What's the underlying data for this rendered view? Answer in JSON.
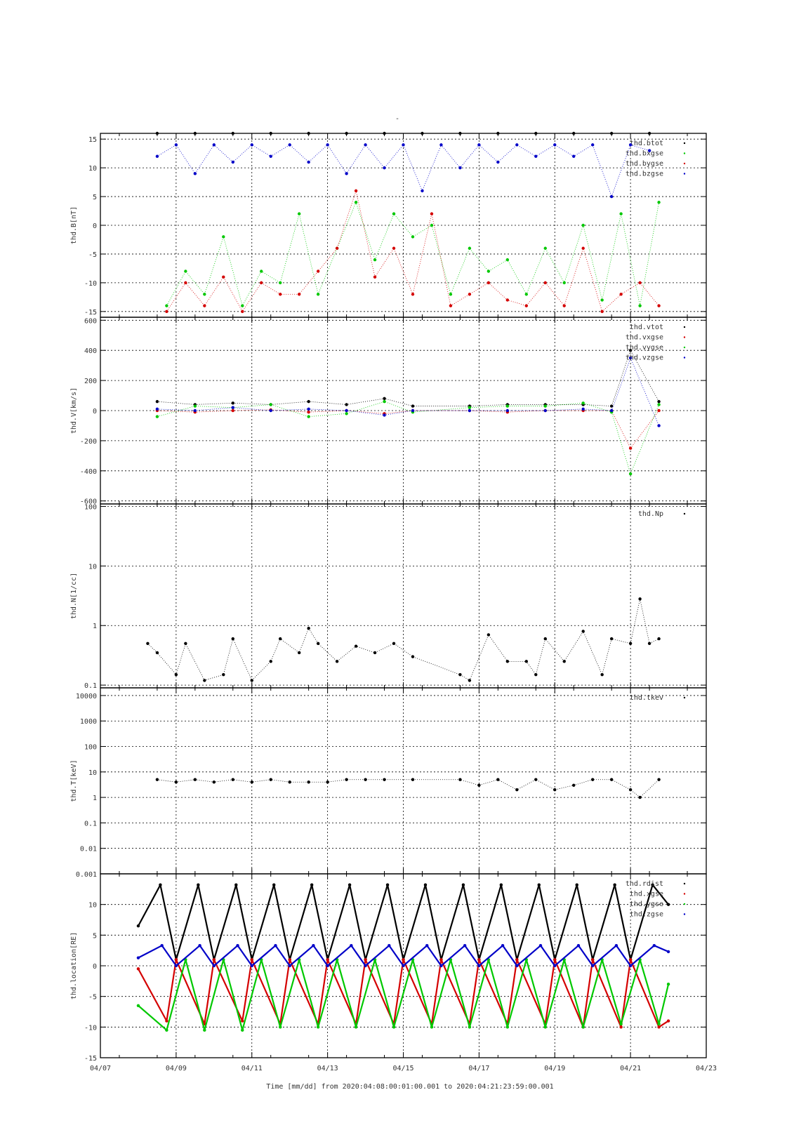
{
  "page_mark": "-",
  "xaxis": {
    "ticks": [
      "04/07",
      "04/09",
      "04/11",
      "04/13",
      "04/15",
      "04/17",
      "04/19",
      "04/21",
      "04/23"
    ],
    "range_days": [
      7,
      23
    ],
    "title": "Time [mm/dd]  from 2020:04:08:00:01:00.001  to  2020:04:21:23:59:00.001"
  },
  "colors": {
    "black": "#000000",
    "red": "#d40000",
    "green": "#00c800",
    "blue": "#0000c8"
  },
  "chart_data": [
    {
      "type": "scatter",
      "ylabel": "thd.B[nT]",
      "ylim": [
        -16,
        16
      ],
      "yticks": [
        15,
        10,
        5,
        0,
        -5,
        -10,
        -15
      ],
      "grid": true,
      "legend_placement": "top-right",
      "series": [
        {
          "name": "thd.btot",
          "color": "black",
          "x": [
            "04/08 12:00",
            "04/09 12:00",
            "04/10 12:00",
            "04/11 12:00",
            "04/12 12:00",
            "04/13 12:00",
            "04/14 12:00",
            "04/15 12:00",
            "04/16 12:00",
            "04/17 12:00",
            "04/18 12:00",
            "04/19 12:00",
            "04/20 12:00",
            "04/21 12:00"
          ],
          "y": [
            16,
            16,
            16,
            16,
            16,
            16,
            16,
            16,
            16,
            16,
            16,
            16,
            16,
            16
          ]
        },
        {
          "name": "thd.bxgse",
          "color": "green",
          "x": [
            "04/08 18:00",
            "04/09 06:00",
            "04/09 18:00",
            "04/10 06:00",
            "04/10 18:00",
            "04/11 06:00",
            "04/11 18:00",
            "04/12 06:00",
            "04/12 18:00",
            "04/13 06:00",
            "04/13 18:00",
            "04/14 06:00",
            "04/14 18:00",
            "04/15 06:00",
            "04/15 18:00",
            "04/16 06:00",
            "04/16 18:00",
            "04/17 06:00",
            "04/17 18:00",
            "04/18 06:00",
            "04/18 18:00",
            "04/19 06:00",
            "04/19 18:00",
            "04/20 06:00",
            "04/20 18:00",
            "04/21 06:00",
            "04/21 18:00"
          ],
          "y": [
            -14,
            -8,
            -12,
            -2,
            -14,
            -8,
            -10,
            2,
            -12,
            -4,
            4,
            -6,
            2,
            -2,
            0,
            -12,
            -4,
            -8,
            -6,
            -12,
            -4,
            -10,
            0,
            -13,
            2,
            -14,
            4
          ]
        },
        {
          "name": "thd.bygse",
          "color": "red",
          "x": [
            "04/08 18:00",
            "04/09 06:00",
            "04/09 18:00",
            "04/10 06:00",
            "04/10 18:00",
            "04/11 06:00",
            "04/11 18:00",
            "04/12 06:00",
            "04/12 18:00",
            "04/13 06:00",
            "04/13 18:00",
            "04/14 06:00",
            "04/14 18:00",
            "04/15 06:00",
            "04/15 18:00",
            "04/16 06:00",
            "04/16 18:00",
            "04/17 06:00",
            "04/17 18:00",
            "04/18 06:00",
            "04/18 18:00",
            "04/19 06:00",
            "04/19 18:00",
            "04/20 06:00",
            "04/20 18:00",
            "04/21 06:00",
            "04/21 18:00"
          ],
          "y": [
            -15,
            -10,
            -14,
            -9,
            -15,
            -10,
            -12,
            -12,
            -8,
            -4,
            6,
            -9,
            -4,
            -12,
            2,
            -14,
            -12,
            -10,
            -13,
            -14,
            -10,
            -14,
            -4,
            -15,
            -12,
            -10,
            -14
          ]
        },
        {
          "name": "thd.bzgse",
          "color": "blue",
          "x": [
            "04/08 12:00",
            "04/09 00:00",
            "04/09 12:00",
            "04/10 00:00",
            "04/10 12:00",
            "04/11 00:00",
            "04/11 12:00",
            "04/12 00:00",
            "04/12 12:00",
            "04/13 00:00",
            "04/13 12:00",
            "04/14 00:00",
            "04/14 12:00",
            "04/15 00:00",
            "04/15 12:00",
            "04/16 00:00",
            "04/16 12:00",
            "04/17 00:00",
            "04/17 12:00",
            "04/18 00:00",
            "04/18 12:00",
            "04/19 00:00",
            "04/19 12:00",
            "04/20 00:00",
            "04/20 12:00",
            "04/21 00:00",
            "04/21 12:00"
          ],
          "y": [
            12,
            14,
            9,
            14,
            11,
            14,
            12,
            14,
            11,
            14,
            9,
            14,
            10,
            14,
            6,
            14,
            10,
            14,
            11,
            14,
            12,
            14,
            12,
            14,
            5,
            14,
            13
          ]
        }
      ]
    },
    {
      "type": "scatter",
      "ylabel": "thd.V[km/s]",
      "ylim": [
        -620,
        620
      ],
      "yticks": [
        600,
        400,
        200,
        0,
        -200,
        -400,
        -600
      ],
      "grid": true,
      "legend_placement": "top-right",
      "series": [
        {
          "name": "thd.vtot",
          "color": "black",
          "x": [
            "04/08 12:00",
            "04/09 12:00",
            "04/10 12:00",
            "04/11 12:00",
            "04/12 12:00",
            "04/13 12:00",
            "04/14 12:00",
            "04/15 06:00",
            "04/16 18:00",
            "04/17 18:00",
            "04/18 18:00",
            "04/19 18:00",
            "04/20 12:00",
            "04/21 00:00",
            "04/21 18:00"
          ],
          "y": [
            60,
            40,
            50,
            40,
            60,
            40,
            80,
            30,
            30,
            40,
            40,
            40,
            30,
            400,
            60
          ]
        },
        {
          "name": "thd.vxgse",
          "color": "red",
          "x": [
            "04/08 12:00",
            "04/09 12:00",
            "04/10 12:00",
            "04/11 12:00",
            "04/12 12:00",
            "04/13 12:00",
            "04/14 12:00",
            "04/15 06:00",
            "04/16 18:00",
            "04/17 18:00",
            "04/18 18:00",
            "04/19 18:00",
            "04/20 12:00",
            "04/21 00:00",
            "04/21 18:00"
          ],
          "y": [
            0,
            -10,
            0,
            5,
            -10,
            0,
            -20,
            0,
            0,
            -10,
            0,
            0,
            0,
            -250,
            0
          ]
        },
        {
          "name": "thd.vygse",
          "color": "green",
          "x": [
            "04/08 12:00",
            "04/09 12:00",
            "04/10 12:00",
            "04/11 12:00",
            "04/12 12:00",
            "04/13 12:00",
            "04/14 12:00",
            "04/15 06:00",
            "04/16 18:00",
            "04/17 18:00",
            "04/18 18:00",
            "04/19 18:00",
            "04/20 12:00",
            "04/21 00:00",
            "04/21 18:00"
          ],
          "y": [
            -40,
            30,
            20,
            40,
            -40,
            -20,
            60,
            -10,
            20,
            30,
            30,
            50,
            -10,
            -420,
            40
          ]
        },
        {
          "name": "thd.vzgse",
          "color": "blue",
          "x": [
            "04/08 12:00",
            "04/09 12:00",
            "04/10 12:00",
            "04/11 12:00",
            "04/12 12:00",
            "04/13 12:00",
            "04/14 12:00",
            "04/15 06:00",
            "04/16 18:00",
            "04/17 18:00",
            "04/18 18:00",
            "04/19 18:00",
            "04/20 12:00",
            "04/21 00:00",
            "04/21 18:00"
          ],
          "y": [
            10,
            0,
            20,
            0,
            10,
            0,
            -30,
            0,
            0,
            0,
            0,
            10,
            0,
            350,
            -100
          ]
        }
      ]
    },
    {
      "type": "scatter",
      "ylabel": "thd.N[1/cc]",
      "yscale": "log",
      "ylim": [
        0.09,
        110
      ],
      "yticks": [
        100,
        10,
        1,
        0.1
      ],
      "grid": true,
      "legend_placement": "top-right",
      "series": [
        {
          "name": "thd.Np",
          "color": "black",
          "x": [
            "04/08 06:00",
            "04/08 12:00",
            "04/09 00:00",
            "04/09 06:00",
            "04/09 18:00",
            "04/10 06:00",
            "04/10 12:00",
            "04/11 00:00",
            "04/11 12:00",
            "04/11 18:00",
            "04/12 06:00",
            "04/12 12:00",
            "04/12 18:00",
            "04/13 06:00",
            "04/13 18:00",
            "04/14 06:00",
            "04/14 18:00",
            "04/15 06:00",
            "04/16 12:00",
            "04/16 18:00",
            "04/17 06:00",
            "04/17 18:00",
            "04/18 06:00",
            "04/18 12:00",
            "04/18 18:00",
            "04/19 06:00",
            "04/19 18:00",
            "04/20 06:00",
            "04/20 12:00",
            "04/21 00:00",
            "04/21 06:00",
            "04/21 12:00",
            "04/21 18:00"
          ],
          "y": [
            0.5,
            0.35,
            0.15,
            0.5,
            0.12,
            0.15,
            0.6,
            0.12,
            0.25,
            0.6,
            0.35,
            0.9,
            0.5,
            0.25,
            0.45,
            0.35,
            0.5,
            0.3,
            0.15,
            0.12,
            0.7,
            0.25,
            0.25,
            0.15,
            0.6,
            0.25,
            0.8,
            0.15,
            0.6,
            0.5,
            2.8,
            0.5,
            0.6
          ]
        }
      ]
    },
    {
      "type": "scatter",
      "ylabel": "thd.T[keV]",
      "yscale": "log",
      "ylim": [
        0.001,
        20000
      ],
      "yticks": [
        10000,
        1000,
        100,
        10,
        1,
        0.1,
        0.01,
        0.001
      ],
      "grid": true,
      "legend_placement": "top-right",
      "series": [
        {
          "name": "thd.tkev",
          "color": "black",
          "x": [
            "04/08 12:00",
            "04/09 00:00",
            "04/09 12:00",
            "04/10 00:00",
            "04/10 12:00",
            "04/11 00:00",
            "04/11 12:00",
            "04/12 00:00",
            "04/12 12:00",
            "04/13 00:00",
            "04/13 12:00",
            "04/14 00:00",
            "04/14 12:00",
            "04/15 06:00",
            "04/16 12:00",
            "04/17 00:00",
            "04/17 12:00",
            "04/18 00:00",
            "04/18 12:00",
            "04/19 00:00",
            "04/19 12:00",
            "04/20 00:00",
            "04/20 12:00",
            "04/21 00:00",
            "04/21 06:00",
            "04/21 18:00"
          ],
          "y": [
            5,
            4,
            5,
            4,
            5,
            4,
            5,
            4,
            4,
            4,
            5,
            5,
            5,
            5,
            5,
            3,
            5,
            2,
            5,
            2,
            3,
            5,
            5,
            2,
            1,
            5
          ]
        }
      ]
    },
    {
      "type": "line",
      "ylabel": "thd.location[RE]",
      "ylim": [
        -15,
        15
      ],
      "yticks": [
        10,
        5,
        0,
        -5,
        -10,
        -15
      ],
      "grid": true,
      "legend_placement": "top-right",
      "series": [
        {
          "name": "thd.rdist",
          "color": "black",
          "x": [
            "04/08 00:00",
            "04/08 14:00",
            "04/09 00:00",
            "04/09 14:00",
            "04/10 00:00",
            "04/10 14:00",
            "04/11 00:00",
            "04/11 14:00",
            "04/12 00:00",
            "04/12 14:00",
            "04/13 00:00",
            "04/13 14:00",
            "04/14 00:00",
            "04/14 14:00",
            "04/15 00:00",
            "04/15 14:00",
            "04/16 00:00",
            "04/16 14:00",
            "04/17 00:00",
            "04/17 14:00",
            "04/18 00:00",
            "04/18 14:00",
            "04/19 00:00",
            "04/19 14:00",
            "04/20 00:00",
            "04/20 14:00",
            "04/21 00:00",
            "04/21 14:00",
            "04/22 00:00"
          ],
          "y": [
            6.5,
            13.2,
            1.0,
            13.2,
            1.0,
            13.2,
            1.0,
            13.2,
            1.0,
            13.2,
            1.0,
            13.2,
            1.0,
            13.2,
            1.0,
            13.2,
            1.0,
            13.2,
            1.0,
            13.2,
            1.0,
            13.2,
            1.0,
            13.2,
            1.0,
            13.2,
            1.0,
            13.2,
            10
          ]
        },
        {
          "name": "thd.xgse",
          "color": "red",
          "x": [
            "04/08 00:00",
            "04/08 18:00",
            "04/09 00:00",
            "04/09 18:00",
            "04/10 00:00",
            "04/10 18:00",
            "04/11 00:00",
            "04/11 18:00",
            "04/12 00:00",
            "04/12 18:00",
            "04/13 00:00",
            "04/13 18:00",
            "04/14 00:00",
            "04/14 18:00",
            "04/15 00:00",
            "04/15 18:00",
            "04/16 00:00",
            "04/16 18:00",
            "04/17 00:00",
            "04/17 18:00",
            "04/18 00:00",
            "04/18 18:00",
            "04/19 00:00",
            "04/19 18:00",
            "04/20 00:00",
            "04/20 18:00",
            "04/21 00:00",
            "04/21 18:00",
            "04/22 00:00"
          ],
          "y": [
            -0.5,
            -9,
            1,
            -9.5,
            1,
            -9,
            1,
            -9.5,
            1,
            -9.5,
            1,
            -9.5,
            1,
            -9.5,
            1,
            -9.5,
            1,
            -9.5,
            1,
            -9.5,
            1,
            -9.5,
            1,
            -10,
            1,
            -10,
            1,
            -10,
            -9
          ]
        },
        {
          "name": "thd.ygse",
          "color": "green",
          "x": [
            "04/08 00:00",
            "04/08 18:00",
            "04/09 06:00",
            "04/09 18:00",
            "04/10 06:00",
            "04/10 18:00",
            "04/11 06:00",
            "04/11 18:00",
            "04/12 06:00",
            "04/12 18:00",
            "04/13 06:00",
            "04/13 18:00",
            "04/14 06:00",
            "04/14 18:00",
            "04/15 06:00",
            "04/15 18:00",
            "04/16 06:00",
            "04/16 18:00",
            "04/17 06:00",
            "04/17 18:00",
            "04/18 06:00",
            "04/18 18:00",
            "04/19 06:00",
            "04/19 18:00",
            "04/20 06:00",
            "04/20 18:00",
            "04/21 06:00",
            "04/21 18:00",
            "04/22 00:00"
          ],
          "y": [
            -6.5,
            -10.5,
            1,
            -10.5,
            1,
            -10.5,
            1,
            -10,
            1,
            -10,
            1,
            -10,
            1,
            -10,
            1,
            -10,
            1,
            -10,
            1,
            -10,
            1,
            -10,
            1,
            -10,
            1,
            -9.5,
            1,
            -9.5,
            -3
          ]
        },
        {
          "name": "thd.zgse",
          "color": "blue",
          "x": [
            "04/08 00:00",
            "04/08 15:00",
            "04/09 00:00",
            "04/09 15:00",
            "04/10 00:00",
            "04/10 15:00",
            "04/11 00:00",
            "04/11 15:00",
            "04/12 00:00",
            "04/12 15:00",
            "04/13 00:00",
            "04/13 15:00",
            "04/14 00:00",
            "04/14 15:00",
            "04/15 00:00",
            "04/15 15:00",
            "04/16 00:00",
            "04/16 15:00",
            "04/17 00:00",
            "04/17 15:00",
            "04/18 00:00",
            "04/18 15:00",
            "04/19 00:00",
            "04/19 15:00",
            "04/20 00:00",
            "04/20 15:00",
            "04/21 00:00",
            "04/21 15:00",
            "04/22 00:00"
          ],
          "y": [
            1.3,
            3.3,
            0,
            3.3,
            0,
            3.3,
            0,
            3.3,
            0,
            3.3,
            0,
            3.3,
            0,
            3.3,
            0,
            3.3,
            0,
            3.3,
            0,
            3.3,
            0,
            3.3,
            0,
            3.3,
            0,
            3.3,
            0,
            3.3,
            2.3
          ]
        }
      ]
    }
  ]
}
